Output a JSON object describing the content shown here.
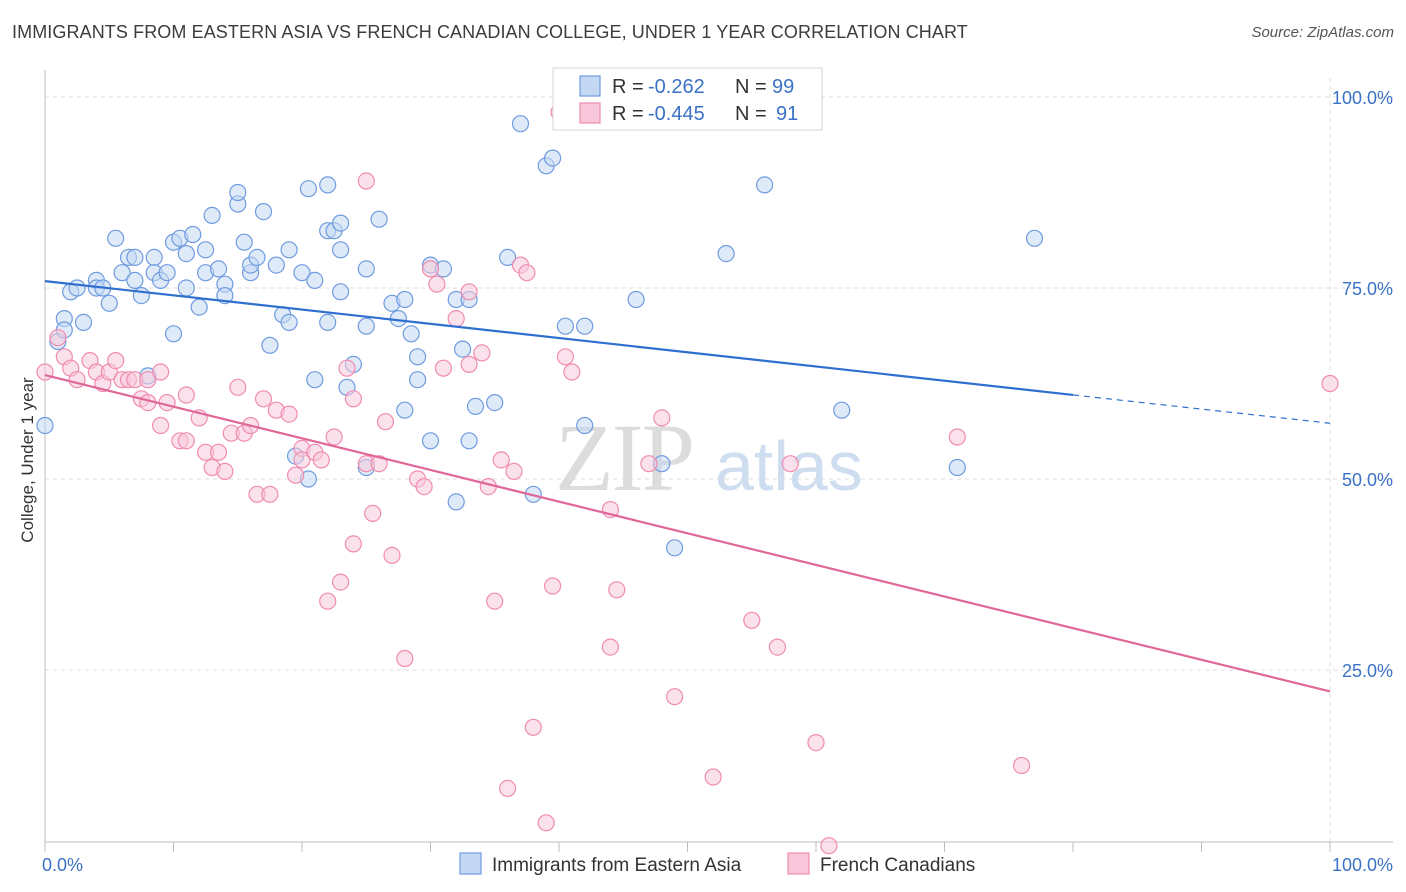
{
  "title": "IMMIGRANTS FROM EASTERN ASIA VS FRENCH CANADIAN COLLEGE, UNDER 1 YEAR CORRELATION CHART",
  "source": "Source: ZipAtlas.com",
  "watermark": {
    "zip": "ZIP",
    "atlas": "atlas"
  },
  "chart_data": {
    "type": "scatter",
    "title": "IMMIGRANTS FROM EASTERN ASIA VS FRENCH CANADIAN COLLEGE, UNDER 1 YEAR CORRELATION CHART",
    "xlabel": "",
    "ylabel": "College, Under 1 year",
    "xlim": [
      0,
      100
    ],
    "ylim": [
      0,
      104
    ],
    "x_ticks": [
      "0.0%",
      "100.0%"
    ],
    "y_ticks": [
      {
        "value": 100,
        "label": "100.0%"
      },
      {
        "value": 75,
        "label": "75.0%"
      },
      {
        "value": 50,
        "label": "50.0%"
      },
      {
        "value": 25,
        "label": "25.0%"
      }
    ],
    "grid": true,
    "legend_position": "top-center",
    "series": [
      {
        "name": "Immigrants from Eastern Asia",
        "color": "#6f9be0",
        "fill": "#c5d8f3",
        "line_color": "#2f6fd0",
        "R": "-0.262",
        "N": "99",
        "trend": {
          "x0": 0,
          "y0": 75.9,
          "x1": 80,
          "y1": 61.0,
          "dash_x1": 100,
          "dash_y1": 57.3
        },
        "points": [
          [
            0,
            57
          ],
          [
            1,
            68
          ],
          [
            1.5,
            71
          ],
          [
            1.5,
            69.5
          ],
          [
            2,
            74.5
          ],
          [
            2.5,
            75
          ],
          [
            3,
            70.5
          ],
          [
            4,
            76
          ],
          [
            4,
            75
          ],
          [
            4.5,
            75
          ],
          [
            5,
            73
          ],
          [
            5.5,
            81.5
          ],
          [
            6,
            77
          ],
          [
            6.5,
            79
          ],
          [
            7,
            79
          ],
          [
            7,
            76
          ],
          [
            7.5,
            74
          ],
          [
            8,
            63.5
          ],
          [
            8.5,
            79
          ],
          [
            8.5,
            77
          ],
          [
            9,
            76
          ],
          [
            9.5,
            77
          ],
          [
            10,
            81
          ],
          [
            10,
            69
          ],
          [
            10.5,
            81.5
          ],
          [
            11,
            79.5
          ],
          [
            11,
            75
          ],
          [
            12,
            72.5
          ],
          [
            12.5,
            80
          ],
          [
            12.5,
            77
          ],
          [
            13,
            84.5
          ],
          [
            13.5,
            77.5
          ],
          [
            14,
            75.5
          ],
          [
            14,
            74
          ],
          [
            15,
            86
          ],
          [
            15,
            87.5
          ],
          [
            15.5,
            81
          ],
          [
            16,
            77
          ],
          [
            16,
            78
          ],
          [
            16.5,
            79
          ],
          [
            17,
            85
          ],
          [
            17.5,
            67.5
          ],
          [
            18,
            78
          ],
          [
            18.5,
            71.5
          ],
          [
            19,
            70.5
          ],
          [
            19,
            80
          ],
          [
            19.5,
            53
          ],
          [
            20,
            77
          ],
          [
            20.5,
            50
          ],
          [
            21,
            63
          ],
          [
            21,
            76
          ],
          [
            22,
            82.5
          ],
          [
            22,
            70.5
          ],
          [
            22,
            88.5
          ],
          [
            22.5,
            82.5
          ],
          [
            23,
            74.5
          ],
          [
            23,
            80
          ],
          [
            23.5,
            62
          ],
          [
            24,
            65
          ],
          [
            25,
            77.5
          ],
          [
            25,
            70
          ],
          [
            25,
            51.5
          ],
          [
            26,
            84
          ],
          [
            27,
            73
          ],
          [
            27.5,
            71
          ],
          [
            28,
            73.5
          ],
          [
            28,
            59
          ],
          [
            28.5,
            69
          ],
          [
            29,
            66
          ],
          [
            29,
            63
          ],
          [
            30,
            78
          ],
          [
            30,
            55
          ],
          [
            31,
            77.5
          ],
          [
            32,
            47
          ],
          [
            32,
            73.5
          ],
          [
            32.5,
            67
          ],
          [
            33,
            55
          ],
          [
            33,
            73.5
          ],
          [
            33.5,
            59.5
          ],
          [
            35,
            60
          ],
          [
            36,
            79
          ],
          [
            37,
            96.5
          ],
          [
            38,
            48
          ],
          [
            39,
            91
          ],
          [
            39.5,
            92
          ],
          [
            40.5,
            70
          ],
          [
            42,
            57
          ],
          [
            42,
            70
          ],
          [
            46,
            73.5
          ],
          [
            48,
            52
          ],
          [
            49,
            41
          ],
          [
            53,
            79.5
          ],
          [
            56,
            88.5
          ],
          [
            62,
            59
          ],
          [
            71,
            51.5
          ],
          [
            77,
            81.5
          ],
          [
            23,
            83.5
          ],
          [
            20.5,
            88
          ],
          [
            11.5,
            82
          ]
        ]
      },
      {
        "name": "French Canadians",
        "color": "#f08cb0",
        "fill": "#f8c8da",
        "line_color": "#e06898",
        "R": "-0.445",
        "N": "91",
        "trend": {
          "x0": 0,
          "y0": 63.6,
          "x1": 100,
          "y1": 22.2
        },
        "points": [
          [
            0,
            64
          ],
          [
            1,
            68.5
          ],
          [
            1.5,
            66
          ],
          [
            2,
            64.5
          ],
          [
            2.5,
            63
          ],
          [
            3.5,
            65.5
          ],
          [
            4,
            64
          ],
          [
            4.5,
            62.5
          ],
          [
            5,
            64
          ],
          [
            5.5,
            65.5
          ],
          [
            6,
            63
          ],
          [
            6.5,
            63
          ],
          [
            7,
            63
          ],
          [
            7.5,
            60.5
          ],
          [
            8,
            63
          ],
          [
            8,
            60
          ],
          [
            9,
            64
          ],
          [
            9,
            57
          ],
          [
            9.5,
            60
          ],
          [
            10.5,
            55
          ],
          [
            11,
            55
          ],
          [
            11,
            61
          ],
          [
            12,
            58
          ],
          [
            12.5,
            53.5
          ],
          [
            13,
            51.5
          ],
          [
            13.5,
            53.5
          ],
          [
            14,
            51
          ],
          [
            14.5,
            56
          ],
          [
            15,
            62
          ],
          [
            15.5,
            56
          ],
          [
            16,
            57
          ],
          [
            16.5,
            48
          ],
          [
            17,
            60.5
          ],
          [
            17.5,
            48
          ],
          [
            18,
            59
          ],
          [
            19,
            58.5
          ],
          [
            19.5,
            50.5
          ],
          [
            20,
            54
          ],
          [
            20,
            52.5
          ],
          [
            21,
            53.5
          ],
          [
            21.5,
            52.5
          ],
          [
            22,
            34
          ],
          [
            22.5,
            55.5
          ],
          [
            23,
            36.5
          ],
          [
            23.5,
            64.5
          ],
          [
            24,
            41.5
          ],
          [
            24,
            60.5
          ],
          [
            25,
            52
          ],
          [
            25,
            89
          ],
          [
            25.5,
            45.5
          ],
          [
            26,
            52
          ],
          [
            26.5,
            57.5
          ],
          [
            27,
            40
          ],
          [
            28,
            26.5
          ],
          [
            29,
            50
          ],
          [
            29.5,
            49
          ],
          [
            30,
            77.5
          ],
          [
            30.5,
            75.5
          ],
          [
            31,
            64.5
          ],
          [
            32,
            71
          ],
          [
            33,
            74.5
          ],
          [
            33,
            65
          ],
          [
            34,
            66.5
          ],
          [
            34.5,
            49
          ],
          [
            35,
            34
          ],
          [
            35.5,
            52.5
          ],
          [
            36,
            9.5
          ],
          [
            36.5,
            51
          ],
          [
            37,
            78
          ],
          [
            37.5,
            77
          ],
          [
            38,
            17.5
          ],
          [
            39,
            5
          ],
          [
            39.5,
            36
          ],
          [
            40,
            98
          ],
          [
            40.5,
            66
          ],
          [
            41,
            64
          ],
          [
            44,
            46
          ],
          [
            44,
            28
          ],
          [
            44.5,
            35.5
          ],
          [
            47,
            52
          ],
          [
            48,
            58
          ],
          [
            49,
            21.5
          ],
          [
            52,
            11
          ],
          [
            55,
            31.5
          ],
          [
            57,
            28
          ],
          [
            58,
            52
          ],
          [
            60,
            15.5
          ],
          [
            61,
            2
          ],
          [
            71,
            55.5
          ],
          [
            76,
            12.5
          ],
          [
            100,
            62.5
          ]
        ]
      }
    ]
  }
}
